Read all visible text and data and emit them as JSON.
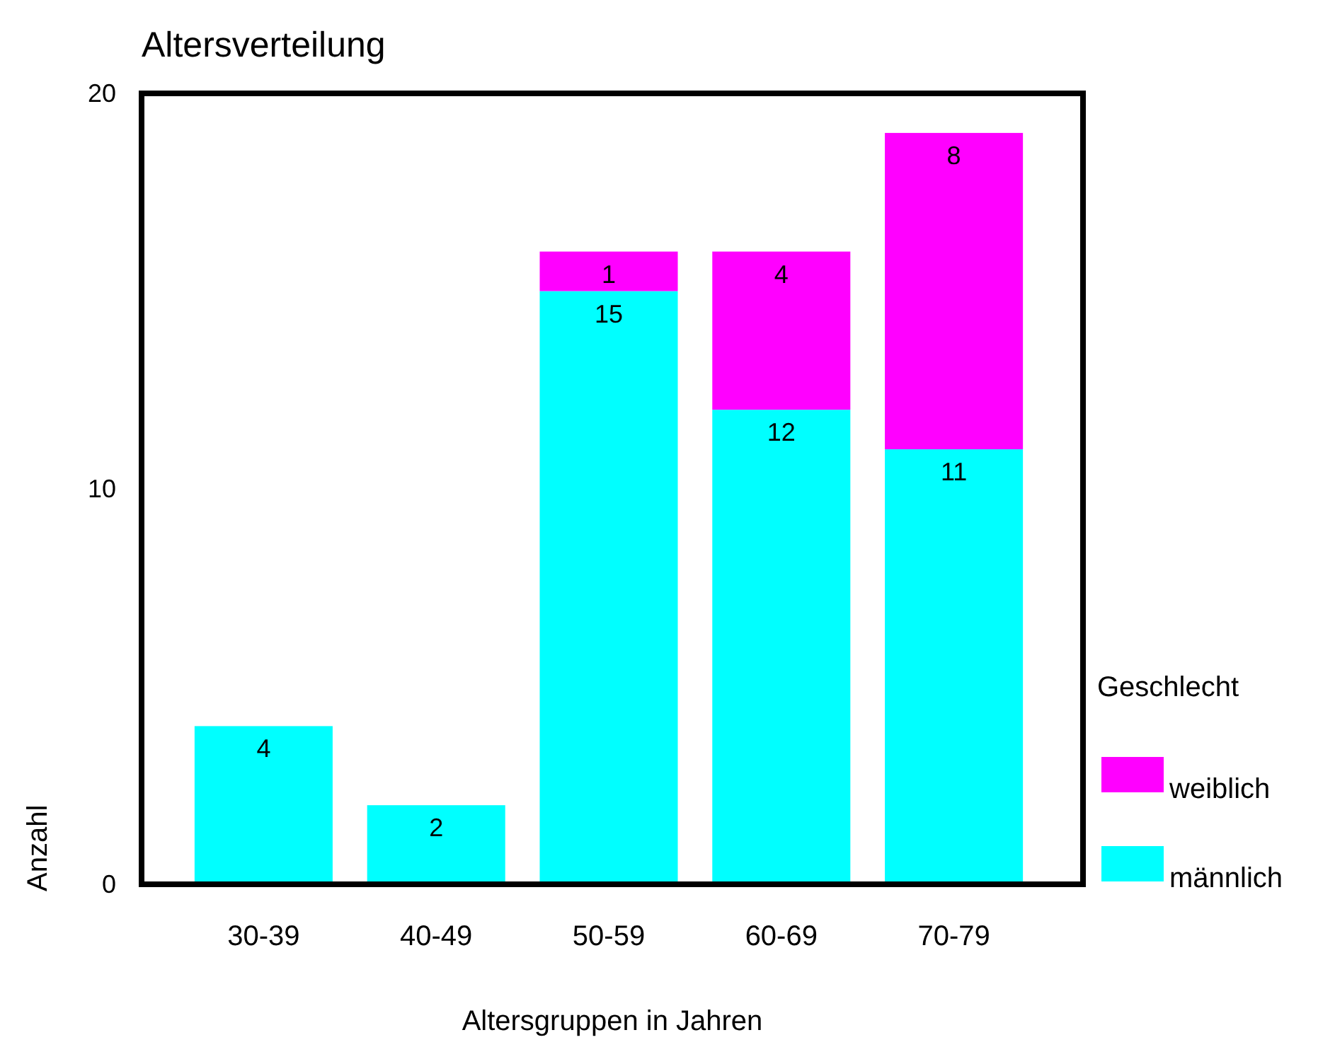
{
  "chart_data": {
    "type": "bar",
    "title": "Altersverteilung",
    "xlabel": "Altersgruppen in Jahren",
    "ylabel": "Anzahl",
    "legend_title": "Geschlecht",
    "categories": [
      "30-39",
      "40-49",
      "50-59",
      "60-69",
      "70-79"
    ],
    "stacked": true,
    "ylim": [
      0,
      20
    ],
    "yticks": [
      0,
      10,
      20
    ],
    "grid": false,
    "legend": "right",
    "series": [
      {
        "name": "männlich",
        "color": "#00ffff",
        "values": [
          4,
          2,
          15,
          12,
          11
        ],
        "value_labels": [
          "4",
          "2",
          "15",
          "12",
          "11"
        ]
      },
      {
        "name": "weiblich",
        "color": "#ff00ff",
        "values": [
          0,
          0,
          1,
          4,
          8
        ],
        "value_labels": [
          null,
          null,
          "1",
          "4",
          "8"
        ]
      }
    ]
  }
}
